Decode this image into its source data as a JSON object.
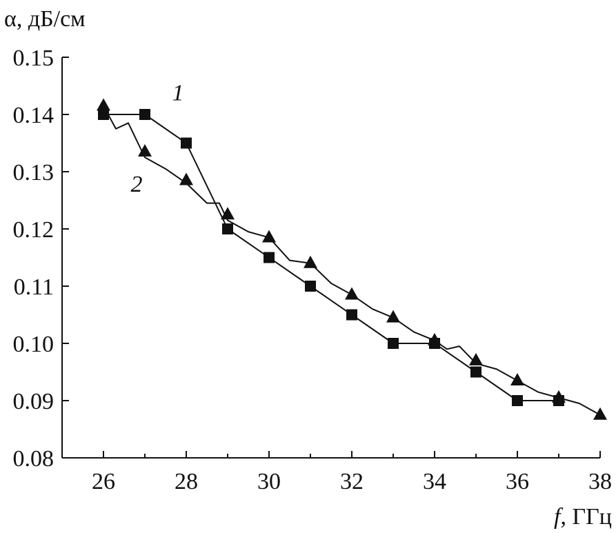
{
  "chart_data": {
    "type": "line",
    "ylabel": "α, дБ/см",
    "xlabel_symbol": "f",
    "xlabel_unit": ", ГГц",
    "xlim": [
      25,
      38
    ],
    "ylim": [
      0.08,
      0.15
    ],
    "x_ticks": [
      26,
      28,
      30,
      32,
      34,
      36,
      38
    ],
    "x_tick_labels": [
      "26",
      "28",
      "30",
      "32",
      "34",
      "36",
      "38"
    ],
    "y_ticks": [
      0.08,
      0.09,
      0.1,
      0.11,
      0.12,
      0.13,
      0.14,
      0.15
    ],
    "y_tick_labels": [
      "0.08",
      "0.09",
      "0.10",
      "0.11",
      "0.12",
      "0.13",
      "0.14",
      "0.15"
    ],
    "grid": false,
    "line_color": "#111111",
    "series": [
      {
        "name": "1",
        "marker": "square",
        "x": [
          26,
          27,
          28,
          29,
          30,
          31,
          32,
          33,
          34,
          35,
          36,
          37
        ],
        "y": [
          0.14,
          0.14,
          0.135,
          0.12,
          0.115,
          0.11,
          0.105,
          0.1,
          0.1,
          0.095,
          0.09,
          0.09
        ]
      },
      {
        "name": "2",
        "marker": "triangle",
        "x": [
          26,
          27,
          28,
          29,
          30,
          31,
          32,
          33,
          34,
          35,
          36,
          37,
          38
        ],
        "y": [
          0.1415,
          0.1335,
          0.1285,
          0.1225,
          0.1185,
          0.114,
          0.1085,
          0.1045,
          0.1005,
          0.097,
          0.0935,
          0.0905,
          0.0875
        ],
        "trace_x": [
          26,
          26.3,
          26.6,
          27,
          27.5,
          28,
          28.5,
          28.8,
          29,
          29.5,
          30,
          30.5,
          31,
          31.5,
          32,
          32.5,
          33,
          33.5,
          34,
          34.3,
          34.6,
          35,
          35.5,
          36,
          36.5,
          37,
          37.5,
          38
        ],
        "trace_y": [
          0.1415,
          0.1375,
          0.1385,
          0.1325,
          0.1305,
          0.128,
          0.1245,
          0.1245,
          0.1215,
          0.1195,
          0.1185,
          0.1145,
          0.114,
          0.1105,
          0.1085,
          0.106,
          0.1045,
          0.102,
          0.1005,
          0.099,
          0.0995,
          0.0965,
          0.0955,
          0.0935,
          0.0915,
          0.0905,
          0.0895,
          0.0875
        ]
      }
    ],
    "annotations": [
      {
        "text": "1",
        "x": 27.8,
        "y": 0.1425
      },
      {
        "text": "2",
        "x": 26.8,
        "y": 0.1265
      }
    ]
  }
}
